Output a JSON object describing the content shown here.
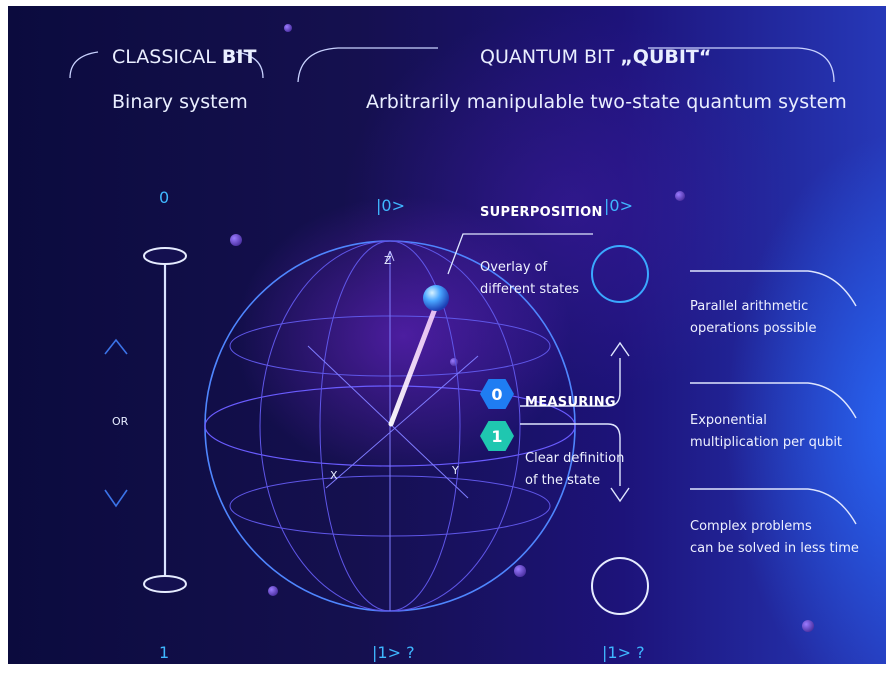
{
  "classical": {
    "title_prefix": "CLASSICAL ",
    "title_bold": "BIT",
    "subtitle": "Binary system",
    "top_value": "0",
    "bottom_value": "1",
    "or_label": "OR"
  },
  "quantum": {
    "title_prefix": "QUANTUM BIT ",
    "title_bold": "„QUBIT“",
    "subtitle": "Arbitrarily manipulable two-state quantum system",
    "sphere_top_ket": "|0>",
    "sphere_bottom_ket": "|1> ?",
    "axis_z": "Z",
    "axis_x": "X",
    "axis_y": "Y",
    "superposition_title": "SUPERPOSITION",
    "superposition_line1": "Overlay of",
    "superposition_line2": "different states",
    "measuring_title": "MEASURING",
    "measuring_line1": "Clear definition",
    "measuring_line2": "of the state",
    "hex_top": "0",
    "hex_bottom": "1",
    "state_top_ket": "|0>",
    "state_bottom_ket": "|1> ?"
  },
  "benefits": [
    {
      "line1": "Parallel arithmetic",
      "line2": "operations possible"
    },
    {
      "line1": "Exponential",
      "line2": "multiplication per qubit"
    },
    {
      "line1": "Complex problems",
      "line2": "can be solved in less time"
    }
  ],
  "colors": {
    "background": "#15104f",
    "accent_cyan": "#3fb7ff",
    "line_blue": "#4f86ff",
    "hex_blue": "#1f7df2",
    "hex_teal": "#1fc7b0"
  }
}
